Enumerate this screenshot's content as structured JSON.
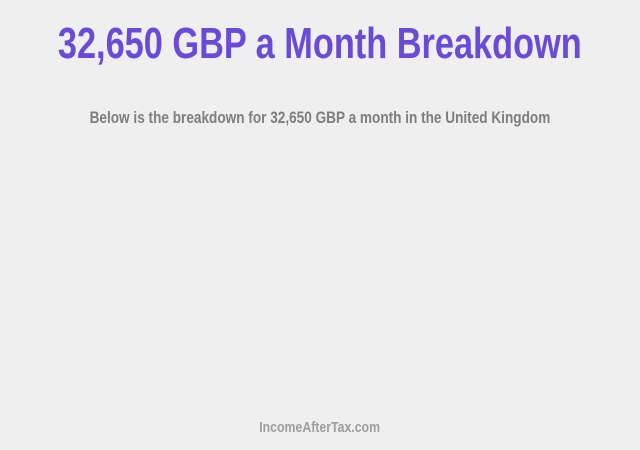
{
  "page": {
    "background_color": "#EFEFEF"
  },
  "header": {
    "title": "32,650 GBP a Month Breakdown",
    "title_color": "#6A4BD8",
    "subtitle": "Below is the breakdown for 32,650 GBP a month in the United Kingdom",
    "subtitle_color": "#7E7E7E"
  },
  "footer": {
    "brand": "IncomeAfterTax.com",
    "brand_color": "#9D9D9D"
  }
}
